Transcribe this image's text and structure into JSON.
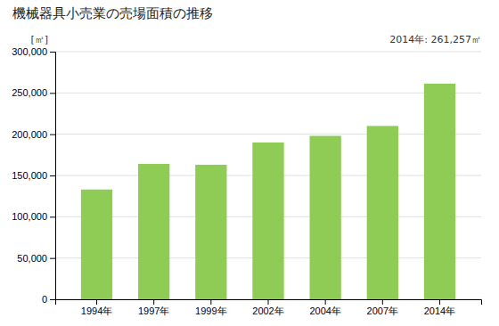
{
  "chart_data": {
    "type": "bar",
    "title": "機械器具小売業の売場面積の推移",
    "ylabel": "[㎡]",
    "annotation": "2014年: 261,257㎡",
    "categories": [
      "1994年",
      "1997年",
      "1999年",
      "2002年",
      "2004年",
      "2007年",
      "2014年"
    ],
    "values": [
      133000,
      164000,
      163000,
      190000,
      198000,
      210000,
      261257
    ],
    "color": "#8fcc55",
    "ylim": [
      0,
      300000
    ],
    "yticks": [
      0,
      {
        "value": 50000,
        "label": "50,000"
      },
      {
        "value": 100000,
        "label": "100,000"
      },
      {
        "value": 150000,
        "label": "150,000"
      },
      {
        "value": 200000,
        "label": "200,000"
      },
      {
        "value": 250000,
        "label": "250,000"
      },
      {
        "value": 300000,
        "label": "300,000"
      }
    ],
    "grid": true
  }
}
